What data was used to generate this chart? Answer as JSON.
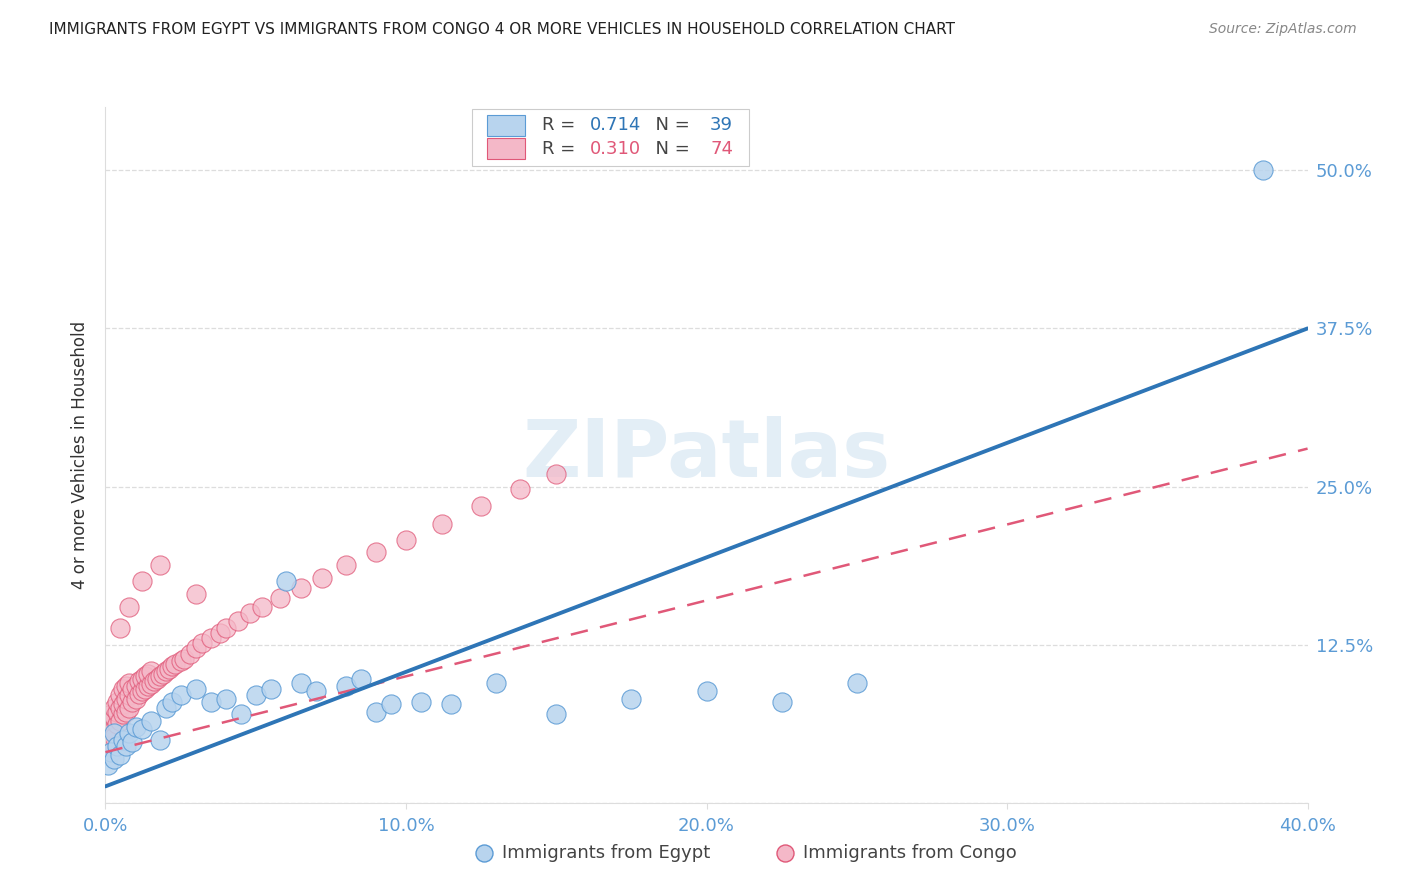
{
  "title": "IMMIGRANTS FROM EGYPT VS IMMIGRANTS FROM CONGO 4 OR MORE VEHICLES IN HOUSEHOLD CORRELATION CHART",
  "source": "Source: ZipAtlas.com",
  "ylabel": "4 or more Vehicles in Household",
  "xlim": [
    0.0,
    0.4
  ],
  "ylim": [
    0.0,
    0.55
  ],
  "xtick_positions": [
    0.0,
    0.1,
    0.2,
    0.3,
    0.4
  ],
  "xtick_labels": [
    "0.0%",
    "10.0%",
    "20.0%",
    "30.0%",
    "40.0%"
  ],
  "ytick_positions": [
    0.0,
    0.125,
    0.25,
    0.375,
    0.5
  ],
  "ytick_labels": [
    "",
    "12.5%",
    "25.0%",
    "37.5%",
    "50.0%"
  ],
  "legend_r_egypt": "0.714",
  "legend_n_egypt": "39",
  "legend_r_congo": "0.310",
  "legend_n_congo": "74",
  "legend_label_egypt": "Immigrants from Egypt",
  "legend_label_congo": "Immigrants from Congo",
  "color_egypt_fill": "#b8d4ee",
  "color_egypt_edge": "#5b9bd5",
  "color_egypt_line": "#2e75b6",
  "color_congo_fill": "#f4b8c8",
  "color_congo_edge": "#e05878",
  "color_congo_line": "#e05878",
  "watermark_color": "#cce0f0",
  "background_color": "#ffffff",
  "grid_color": "#dddddd",
  "axis_tick_color": "#5b9bd5",
  "title_color": "#222222",
  "source_color": "#888888",
  "egypt_line_x": [
    0.0,
    0.4
  ],
  "egypt_line_y": [
    0.013,
    0.375
  ],
  "congo_line_x": [
    0.0,
    0.4
  ],
  "congo_line_y": [
    0.04,
    0.28
  ],
  "egypt_x": [
    0.001,
    0.002,
    0.003,
    0.003,
    0.004,
    0.005,
    0.006,
    0.007,
    0.008,
    0.009,
    0.01,
    0.012,
    0.015,
    0.018,
    0.02,
    0.022,
    0.025,
    0.03,
    0.035,
    0.04,
    0.045,
    0.05,
    0.055,
    0.06,
    0.065,
    0.07,
    0.08,
    0.085,
    0.09,
    0.095,
    0.105,
    0.115,
    0.13,
    0.15,
    0.175,
    0.2,
    0.225,
    0.25,
    0.385
  ],
  "egypt_y": [
    0.03,
    0.04,
    0.035,
    0.055,
    0.045,
    0.038,
    0.05,
    0.045,
    0.055,
    0.048,
    0.06,
    0.058,
    0.065,
    0.05,
    0.075,
    0.08,
    0.085,
    0.09,
    0.08,
    0.082,
    0.07,
    0.085,
    0.09,
    0.175,
    0.095,
    0.088,
    0.092,
    0.098,
    0.072,
    0.078,
    0.08,
    0.078,
    0.095,
    0.07,
    0.082,
    0.088,
    0.08,
    0.095,
    0.5
  ],
  "congo_x": [
    0.001,
    0.001,
    0.001,
    0.002,
    0.002,
    0.002,
    0.002,
    0.003,
    0.003,
    0.003,
    0.003,
    0.004,
    0.004,
    0.004,
    0.005,
    0.005,
    0.005,
    0.006,
    0.006,
    0.006,
    0.007,
    0.007,
    0.007,
    0.008,
    0.008,
    0.008,
    0.009,
    0.009,
    0.01,
    0.01,
    0.011,
    0.011,
    0.012,
    0.012,
    0.013,
    0.013,
    0.014,
    0.014,
    0.015,
    0.015,
    0.016,
    0.017,
    0.018,
    0.019,
    0.02,
    0.021,
    0.022,
    0.023,
    0.025,
    0.026,
    0.028,
    0.03,
    0.032,
    0.035,
    0.038,
    0.04,
    0.044,
    0.048,
    0.052,
    0.058,
    0.065,
    0.072,
    0.08,
    0.09,
    0.1,
    0.112,
    0.125,
    0.138,
    0.15,
    0.03,
    0.005,
    0.008,
    0.012,
    0.018
  ],
  "congo_y": [
    0.05,
    0.06,
    0.045,
    0.055,
    0.065,
    0.07,
    0.048,
    0.058,
    0.068,
    0.075,
    0.052,
    0.062,
    0.072,
    0.08,
    0.065,
    0.075,
    0.085,
    0.07,
    0.078,
    0.09,
    0.072,
    0.082,
    0.092,
    0.075,
    0.085,
    0.095,
    0.08,
    0.09,
    0.082,
    0.092,
    0.086,
    0.096,
    0.088,
    0.098,
    0.09,
    0.1,
    0.092,
    0.102,
    0.094,
    0.104,
    0.096,
    0.098,
    0.1,
    0.102,
    0.104,
    0.106,
    0.108,
    0.11,
    0.112,
    0.114,
    0.118,
    0.122,
    0.126,
    0.13,
    0.134,
    0.138,
    0.144,
    0.15,
    0.155,
    0.162,
    0.17,
    0.178,
    0.188,
    0.198,
    0.208,
    0.22,
    0.235,
    0.248,
    0.26,
    0.165,
    0.138,
    0.155,
    0.175,
    0.188
  ]
}
